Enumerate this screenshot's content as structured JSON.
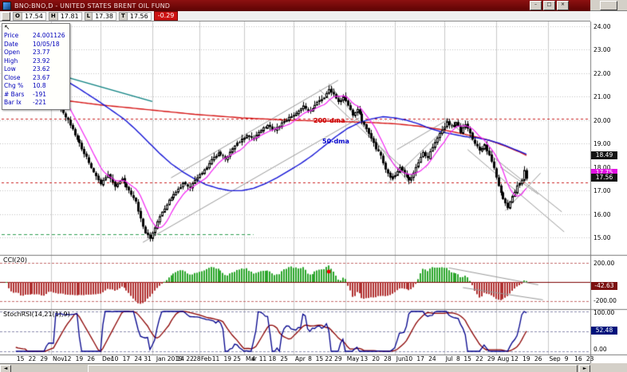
{
  "window": {
    "title": "BNO:BNO,D - UNITED STATES BRENT OIL FUND",
    "controls": {
      "minimize": "–",
      "maximize": "□",
      "close": "×"
    }
  },
  "quote_bar": {
    "fields": [
      {
        "label": "O",
        "value": "17.54"
      },
      {
        "label": "H",
        "value": "17.81"
      },
      {
        "label": "L",
        "value": "17.38"
      },
      {
        "label": "T",
        "value": "17.56"
      }
    ],
    "change": "-0.29"
  },
  "tooltip": {
    "cursor": "↖",
    "rows": [
      {
        "label": "Price",
        "value": "24.001126"
      },
      {
        "label": "Date",
        "value": "10/05/18"
      },
      {
        "label": "Open",
        "value": "23.77"
      },
      {
        "label": "High",
        "value": "23.92"
      },
      {
        "label": "Low",
        "value": "23.62"
      },
      {
        "label": "Close",
        "value": "23.67"
      },
      {
        "label": "Chg %",
        "value": "10.8"
      },
      {
        "label": "# Bars",
        "value": "-191"
      },
      {
        "label": "Bar Ix",
        "value": "-221"
      }
    ]
  },
  "price_axis": {
    "labels": [
      24,
      23,
      22,
      21,
      20,
      19,
      18,
      17,
      16,
      15
    ],
    "highlights": [
      {
        "text": "18.49",
        "price": 18.49,
        "bg": "#141414"
      },
      {
        "text": "17.75",
        "price": 17.75,
        "bg": "#e212e2"
      },
      {
        "text": "17.56",
        "price": 17.56,
        "bg": "#141414"
      }
    ]
  },
  "cci_panel": {
    "label": "CCI(20)",
    "upper": "200.00",
    "lower": "-200.00",
    "last": {
      "text": "-42.63",
      "value": -42.63,
      "bg": "#7b1111"
    }
  },
  "stochrsi_panel": {
    "label": "StochRSI(14,21(1),9)",
    "upper": "100.00",
    "lower": "0.00",
    "last": {
      "text": "52.48",
      "value": 52.48,
      "bg": "#00127b"
    }
  },
  "scrollbar": {
    "left_arrow": "◄",
    "right_arrow": "►"
  },
  "chart_data": {
    "type": "candlestick",
    "symbol": "BNO",
    "period": "daily",
    "visible_range": {
      "first_bar_date": "10/05/18",
      "last_close": 17.56,
      "bars": 222,
      "axis_slots": 250
    },
    "price_scale": {
      "min": 14.35,
      "max": 24.2,
      "step": 1
    },
    "close_anchors": [
      [
        0,
        23.67
      ],
      [
        3,
        23.4
      ],
      [
        6,
        23.0
      ],
      [
        9,
        22.5
      ],
      [
        12,
        22.1
      ],
      [
        14,
        21.7
      ],
      [
        16,
        21.2
      ],
      [
        18,
        21.45
      ],
      [
        20,
        21.0
      ],
      [
        23,
        20.45
      ],
      [
        26,
        20.0
      ],
      [
        29,
        19.4
      ],
      [
        32,
        18.8
      ],
      [
        35,
        18.2
      ],
      [
        38,
        17.6
      ],
      [
        40,
        17.3
      ],
      [
        43,
        17.65
      ],
      [
        46,
        17.2
      ],
      [
        49,
        17.5
      ],
      [
        52,
        17.0
      ],
      [
        55,
        16.5
      ],
      [
        57,
        15.8
      ],
      [
        59,
        15.2
      ],
      [
        61,
        14.95
      ],
      [
        63,
        15.45
      ],
      [
        66,
        16.1
      ],
      [
        69,
        16.6
      ],
      [
        72,
        17.0
      ],
      [
        75,
        17.3
      ],
      [
        78,
        17.15
      ],
      [
        81,
        17.6
      ],
      [
        84,
        17.9
      ],
      [
        87,
        18.3
      ],
      [
        90,
        18.6
      ],
      [
        93,
        18.35
      ],
      [
        96,
        18.8
      ],
      [
        99,
        19.1
      ],
      [
        102,
        19.35
      ],
      [
        105,
        19.25
      ],
      [
        108,
        19.6
      ],
      [
        111,
        19.8
      ],
      [
        114,
        19.55
      ],
      [
        117,
        19.9
      ],
      [
        120,
        20.1
      ],
      [
        123,
        20.3
      ],
      [
        126,
        20.6
      ],
      [
        129,
        20.35
      ],
      [
        132,
        20.8
      ],
      [
        135,
        21.0
      ],
      [
        137,
        21.3
      ],
      [
        139,
        21.1
      ],
      [
        141,
        20.75
      ],
      [
        143,
        21.0
      ],
      [
        145,
        20.6
      ],
      [
        147,
        20.2
      ],
      [
        149,
        20.5
      ],
      [
        151,
        20.0
      ],
      [
        153,
        19.6
      ],
      [
        155,
        19.2
      ],
      [
        157,
        18.8
      ],
      [
        159,
        18.5
      ],
      [
        161,
        17.9
      ],
      [
        163,
        17.55
      ],
      [
        165,
        17.65
      ],
      [
        167,
        18.0
      ],
      [
        169,
        17.7
      ],
      [
        171,
        17.4
      ],
      [
        173,
        17.8
      ],
      [
        175,
        18.2
      ],
      [
        177,
        18.6
      ],
      [
        179,
        18.4
      ],
      [
        181,
        18.9
      ],
      [
        183,
        19.3
      ],
      [
        185,
        19.6
      ],
      [
        187,
        19.95
      ],
      [
        189,
        19.7
      ],
      [
        191,
        19.9
      ],
      [
        193,
        19.5
      ],
      [
        195,
        19.8
      ],
      [
        197,
        19.4
      ],
      [
        199,
        19.0
      ],
      [
        201,
        18.7
      ],
      [
        203,
        18.95
      ],
      [
        205,
        18.5
      ],
      [
        207,
        18.0
      ],
      [
        209,
        17.2
      ],
      [
        211,
        16.6
      ],
      [
        213,
        16.3
      ],
      [
        215,
        16.8
      ],
      [
        217,
        17.2
      ],
      [
        219,
        17.5
      ],
      [
        220,
        17.85
      ],
      [
        221,
        17.56
      ]
    ],
    "ma": {
      "ma200": {
        "color": "#d61414",
        "label": "200-dma",
        "anchors": [
          [
            0,
            21.2
          ],
          [
            20,
            20.9
          ],
          [
            40,
            20.65
          ],
          [
            60,
            20.45
          ],
          [
            80,
            20.25
          ],
          [
            100,
            20.1
          ],
          [
            120,
            20.0
          ],
          [
            140,
            19.95
          ],
          [
            155,
            19.9
          ],
          [
            165,
            19.85
          ],
          [
            175,
            19.75
          ],
          [
            185,
            19.6
          ],
          [
            195,
            19.4
          ],
          [
            205,
            19.15
          ],
          [
            212,
            18.9
          ],
          [
            218,
            18.65
          ],
          [
            221,
            18.5
          ]
        ]
      },
      "ma50": {
        "color": "#1414d6",
        "label": "50-dma",
        "anchors": [
          [
            0,
            22.9
          ],
          [
            10,
            22.5
          ],
          [
            20,
            22.0
          ],
          [
            30,
            21.4
          ],
          [
            40,
            20.75
          ],
          [
            50,
            20.05
          ],
          [
            55,
            19.6
          ],
          [
            60,
            19.1
          ],
          [
            65,
            18.6
          ],
          [
            70,
            18.15
          ],
          [
            75,
            17.8
          ],
          [
            80,
            17.5
          ],
          [
            85,
            17.25
          ],
          [
            90,
            17.1
          ],
          [
            95,
            17.0
          ],
          [
            100,
            17.0
          ],
          [
            105,
            17.1
          ],
          [
            110,
            17.3
          ],
          [
            115,
            17.55
          ],
          [
            120,
            17.85
          ],
          [
            125,
            18.15
          ],
          [
            130,
            18.5
          ],
          [
            135,
            18.9
          ],
          [
            140,
            19.3
          ],
          [
            145,
            19.65
          ],
          [
            150,
            19.9
          ],
          [
            155,
            20.05
          ],
          [
            160,
            20.15
          ],
          [
            165,
            20.1
          ],
          [
            170,
            20.0
          ],
          [
            175,
            19.85
          ],
          [
            180,
            19.65
          ],
          [
            185,
            19.5
          ],
          [
            190,
            19.4
          ],
          [
            195,
            19.3
          ],
          [
            200,
            19.25
          ],
          [
            205,
            19.15
          ],
          [
            210,
            19.0
          ],
          [
            215,
            18.8
          ],
          [
            221,
            18.55
          ]
        ]
      },
      "short_ma": {
        "color": "#f322f3",
        "period": 9
      }
    },
    "teal_segment": {
      "color": "#0b8080",
      "from": [
        11,
        22.25
      ],
      "to": [
        62,
        20.8
      ]
    },
    "trendlines": [
      [
        58,
        14.8,
        150,
        20.1
      ],
      [
        70,
        17.55,
        141,
        21.7
      ],
      [
        137,
        21.55,
        171,
        17.35
      ],
      [
        133,
        21.3,
        168,
        18.0
      ],
      [
        162,
        17.3,
        189,
        19.9
      ],
      [
        166,
        18.75,
        188,
        20.05
      ],
      [
        186,
        20.1,
        236,
        16.1
      ],
      [
        196,
        18.75,
        237,
        15.25
      ],
      [
        210,
        18.0,
        226,
        16.85
      ],
      [
        212,
        16.15,
        227,
        17.75
      ]
    ],
    "hlines": [
      {
        "price": 20.05,
        "color": "#cc2222",
        "dash": [
          3,
          3
        ],
        "from": 0,
        "to": 248
      },
      {
        "price": 17.35,
        "color": "#cc2222",
        "dash": [
          3,
          3
        ],
        "from": 0,
        "to": 248
      },
      {
        "price": 15.15,
        "color": "#2e9e4f",
        "dash": [
          4,
          3
        ],
        "from": 0,
        "to": 105
      }
    ],
    "month_gridlines": [
      19,
      40,
      62,
      82,
      101,
      122,
      144,
      165,
      186,
      208,
      230
    ],
    "date_ticks": [
      [
        6,
        "15"
      ],
      [
        11,
        "22"
      ],
      [
        16,
        "29"
      ],
      [
        19,
        "Nov"
      ],
      [
        26,
        "12"
      ],
      [
        31,
        "19"
      ],
      [
        36,
        "26"
      ],
      [
        40,
        "Dec"
      ],
      [
        46,
        "10"
      ],
      [
        51,
        "17"
      ],
      [
        56,
        "24"
      ],
      [
        60,
        "31"
      ],
      [
        63,
        "Jan 2019"
      ],
      [
        74,
        "14"
      ],
      [
        78,
        "22"
      ],
      [
        81,
        "28"
      ],
      [
        82,
        "Feb"
      ],
      [
        89,
        "11"
      ],
      [
        94,
        "19"
      ],
      [
        98,
        "25"
      ],
      [
        101,
        "Mar"
      ],
      [
        105,
        "4"
      ],
      [
        109,
        "11"
      ],
      [
        113,
        "18"
      ],
      [
        118,
        "25"
      ],
      [
        122,
        "Apr"
      ],
      [
        129,
        "8"
      ],
      [
        133,
        "15"
      ],
      [
        137,
        "22"
      ],
      [
        141,
        "29"
      ],
      [
        144,
        "May"
      ],
      [
        152,
        "13"
      ],
      [
        157,
        "20"
      ],
      [
        162,
        "28"
      ],
      [
        165,
        "Jun"
      ],
      [
        171,
        "10"
      ],
      [
        176,
        "17"
      ],
      [
        181,
        "24"
      ],
      [
        186,
        "Jul"
      ],
      [
        192,
        "8"
      ],
      [
        196,
        "15"
      ],
      [
        201,
        "22"
      ],
      [
        206,
        "29"
      ],
      [
        208,
        "Aug"
      ],
      [
        216,
        "12"
      ],
      [
        221,
        "19"
      ],
      [
        226,
        "26"
      ],
      [
        230,
        "Sep"
      ],
      [
        238,
        "9"
      ],
      [
        243,
        "16"
      ],
      [
        248,
        "23"
      ]
    ],
    "cci": {
      "dot_bar": 137,
      "dot_value": 110,
      "wedge_lines": [
        [
          188,
          150,
          226,
          -30
        ],
        [
          194,
          -60,
          228,
          -190
        ]
      ]
    },
    "indicator_values": {
      "cci_last": -42.63,
      "stochrsi_last": 52.48
    }
  }
}
